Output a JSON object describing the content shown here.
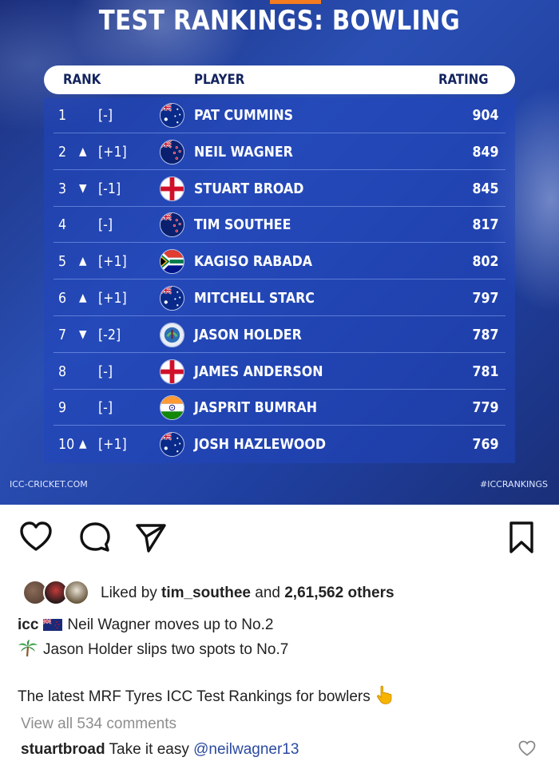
{
  "graphic": {
    "title": "TEST RANKINGS: BOWLING",
    "headers": {
      "rank": "RANK",
      "player": "PLAYER",
      "rating": "RATING"
    },
    "rows": [
      {
        "rank": "1",
        "arrow": "",
        "move": "[-]",
        "flag": "aus",
        "name": "PAT CUMMINS",
        "rating": "904"
      },
      {
        "rank": "2",
        "arrow": "▲",
        "move": "[+1]",
        "flag": "nz",
        "name": "NEIL WAGNER",
        "rating": "849"
      },
      {
        "rank": "3",
        "arrow": "▼",
        "move": "[-1]",
        "flag": "eng",
        "name": "STUART BROAD",
        "rating": "845"
      },
      {
        "rank": "4",
        "arrow": "",
        "move": "[-]",
        "flag": "nz",
        "name": "TIM SOUTHEE",
        "rating": "817"
      },
      {
        "rank": "5",
        "arrow": "▲",
        "move": "[+1]",
        "flag": "sa",
        "name": "KAGISO RABADA",
        "rating": "802"
      },
      {
        "rank": "6",
        "arrow": "▲",
        "move": "[+1]",
        "flag": "aus",
        "name": "MITCHELL STARC",
        "rating": "797"
      },
      {
        "rank": "7",
        "arrow": "▼",
        "move": "[-2]",
        "flag": "wi",
        "name": "JASON HOLDER",
        "rating": "787"
      },
      {
        "rank": "8",
        "arrow": "",
        "move": "[-]",
        "flag": "eng",
        "name": "JAMES ANDERSON",
        "rating": "781"
      },
      {
        "rank": "9",
        "arrow": "",
        "move": "[-]",
        "flag": "ind",
        "name": "JASPRIT BUMRAH",
        "rating": "779"
      },
      {
        "rank": "10",
        "arrow": "▲",
        "move": "[+1]",
        "flag": "aus",
        "name": "JOSH HAZLEWOOD",
        "rating": "769"
      }
    ],
    "footer_left": "ICC-CRICKET.COM",
    "footer_right": "#ICCRANKINGS"
  },
  "post": {
    "icons": [
      "heart-icon",
      "comment-icon",
      "share-icon",
      "bookmark-icon"
    ],
    "likes": {
      "prefix": "Liked by ",
      "user": "tim_southee",
      "middle": " and ",
      "count": "2,61,562 others"
    },
    "caption": {
      "username": "icc",
      "line1": "Neil Wagner moves up to No.2",
      "line2": "Jason Holder slips two spots to No.7",
      "line3": "The latest MRF Tyres ICC Test Rankings for bowlers"
    },
    "view_comments": "View all 534 comments",
    "comment": {
      "username": "stuartbroad",
      "text": " Take it easy ",
      "mention": "@neilwagner13"
    }
  },
  "colors": {
    "graphic_bg": "#2a4fb4",
    "header_text": "#13235e",
    "mention": "#2b4aa0",
    "muted": "#8e8e8e"
  }
}
